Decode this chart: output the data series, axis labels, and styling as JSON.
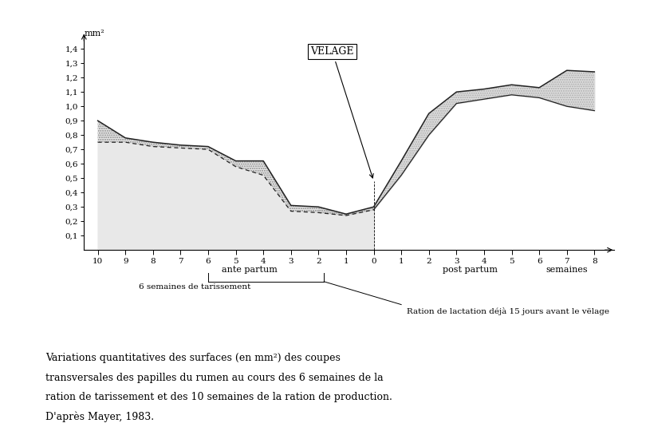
{
  "upper_line_x": [
    -10,
    -9,
    -8,
    -7,
    -6,
    -5,
    -4,
    -3,
    -2,
    -1,
    0,
    1,
    2,
    3,
    4,
    5,
    6,
    7,
    8
  ],
  "upper_line_y": [
    0.9,
    0.78,
    0.75,
    0.73,
    0.72,
    0.62,
    0.62,
    0.31,
    0.3,
    0.25,
    0.3,
    0.62,
    0.95,
    1.1,
    1.12,
    1.15,
    1.13,
    1.25,
    1.24
  ],
  "lower_line_x": [
    -10,
    -9,
    -8,
    -7,
    -6,
    -5,
    -4,
    -3,
    -2,
    -1,
    0,
    1,
    2,
    3,
    4,
    5,
    6,
    7,
    8
  ],
  "lower_line_y": [
    0.75,
    0.75,
    0.72,
    0.71,
    0.7,
    0.58,
    0.52,
    0.27,
    0.26,
    0.24,
    0.28,
    0.52,
    0.8,
    1.02,
    1.05,
    1.08,
    1.06,
    1.0,
    0.97
  ],
  "fill_left_x": [
    -10,
    -9,
    -8,
    -7,
    -6,
    -5,
    -4,
    -3,
    -2,
    -1,
    0
  ],
  "fill_left_upper_y": [
    0.9,
    0.78,
    0.75,
    0.73,
    0.72,
    0.62,
    0.62,
    0.31,
    0.3,
    0.25,
    0.3
  ],
  "fill_right_x": [
    -2,
    -1,
    0,
    1,
    2,
    3,
    4,
    5,
    6,
    7,
    8
  ],
  "fill_right_upper_y": [
    0.3,
    0.25,
    0.3,
    0.62,
    0.95,
    1.1,
    1.12,
    1.15,
    1.13,
    1.25,
    1.24
  ],
  "fill_right_lower_y": [
    0.26,
    0.24,
    0.28,
    0.52,
    0.8,
    1.02,
    1.05,
    1.08,
    1.06,
    1.0,
    0.97
  ],
  "yticks": [
    0.1,
    0.2,
    0.3,
    0.4,
    0.5,
    0.6,
    0.7,
    0.8,
    0.9,
    1.0,
    1.1,
    1.2,
    1.3,
    1.4
  ],
  "xtick_pos": [
    -10,
    -9,
    -8,
    -7,
    -6,
    -5,
    -4,
    -3,
    -2,
    -1,
    0,
    1,
    2,
    3,
    4,
    5,
    6,
    7,
    8
  ],
  "xtick_labels": [
    "10",
    "9",
    "8",
    "7",
    "6",
    "5",
    "4",
    "3",
    "2",
    "1",
    "0",
    "1",
    "2",
    "3",
    "4",
    "5",
    "6",
    "7",
    "8"
  ],
  "velage_label": "VELAGE",
  "ylabel": "mm²",
  "ante_partum_label": "ante partum",
  "post_partum_label": "post partum",
  "semaines_label": "semaines",
  "six_semaines_label": "6 semaines de tarissement",
  "ration_label": "Ration de lactation déjà 15 jours avant le vëlage",
  "caption_text": "Variations quantitatives des surfaces (en mm²) des coupes transversales des papilles du rumen au cours des 6 semaines de la ration de tarissement et des 10 semaines de la ration de production.\nD'après Mayer, 1983.",
  "background_color": "#ffffff",
  "line_color": "#222222"
}
